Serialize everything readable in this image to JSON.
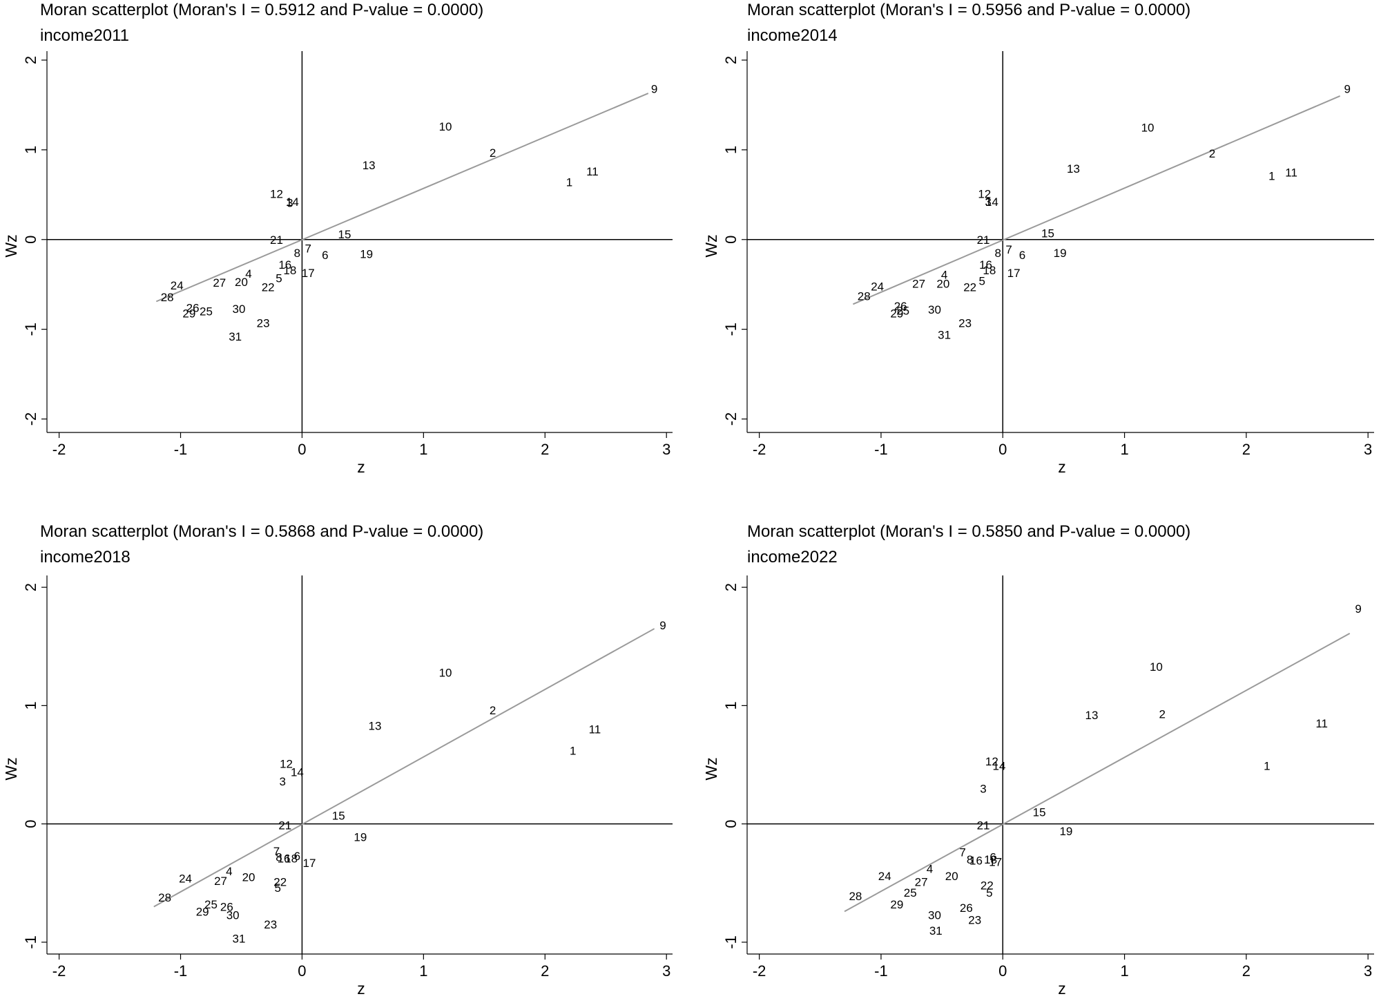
{
  "chart_data": [
    {
      "type": "scatter",
      "title": "Moran scatterplot (Moran's I = 0.5912 and P-value = 0.0000)",
      "subtitle": "income2011",
      "xlabel": "z",
      "ylabel": "Wz",
      "xlim": [
        -2.1,
        3.05
      ],
      "ylim": [
        -2.15,
        2.1
      ],
      "xticks": [
        "-2",
        "-1",
        "0",
        "1",
        "2",
        "3"
      ],
      "yticks": [
        "-2",
        "-1",
        "0",
        "1",
        "2"
      ],
      "fit_line": {
        "x": [
          -1.2,
          2.85
        ],
        "y": [
          -0.69,
          1.63
        ]
      },
      "points": [
        {
          "label": "9",
          "x": 2.9,
          "y": 1.68
        },
        {
          "label": "10",
          "x": 1.18,
          "y": 1.26
        },
        {
          "label": "2",
          "x": 1.57,
          "y": 0.97
        },
        {
          "label": "13",
          "x": 0.55,
          "y": 0.83
        },
        {
          "label": "11",
          "x": 2.39,
          "y": 0.76
        },
        {
          "label": "1",
          "x": 2.2,
          "y": 0.64
        },
        {
          "label": "12",
          "x": -0.21,
          "y": 0.51
        },
        {
          "label": "3",
          "x": -0.1,
          "y": 0.41
        },
        {
          "label": "14",
          "x": -0.08,
          "y": 0.42
        },
        {
          "label": "15",
          "x": 0.35,
          "y": 0.06
        },
        {
          "label": "21",
          "x": -0.21,
          "y": 0.0
        },
        {
          "label": "7",
          "x": 0.05,
          "y": -0.1
        },
        {
          "label": "8",
          "x": -0.04,
          "y": -0.15
        },
        {
          "label": "6",
          "x": 0.19,
          "y": -0.17
        },
        {
          "label": "19",
          "x": 0.53,
          "y": -0.16
        },
        {
          "label": "16",
          "x": -0.14,
          "y": -0.28
        },
        {
          "label": "18",
          "x": -0.1,
          "y": -0.34
        },
        {
          "label": "17",
          "x": 0.05,
          "y": -0.37
        },
        {
          "label": "5",
          "x": -0.19,
          "y": -0.43
        },
        {
          "label": "22",
          "x": -0.28,
          "y": -0.53
        },
        {
          "label": "4",
          "x": -0.44,
          "y": -0.38
        },
        {
          "label": "20",
          "x": -0.5,
          "y": -0.47
        },
        {
          "label": "27",
          "x": -0.68,
          "y": -0.48
        },
        {
          "label": "24",
          "x": -1.03,
          "y": -0.51
        },
        {
          "label": "28",
          "x": -1.11,
          "y": -0.64
        },
        {
          "label": "26",
          "x": -0.9,
          "y": -0.76
        },
        {
          "label": "29",
          "x": -0.93,
          "y": -0.82
        },
        {
          "label": "25",
          "x": -0.79,
          "y": -0.8
        },
        {
          "label": "30",
          "x": -0.52,
          "y": -0.77
        },
        {
          "label": "23",
          "x": -0.32,
          "y": -0.93
        },
        {
          "label": "31",
          "x": -0.55,
          "y": -1.08
        }
      ]
    },
    {
      "type": "scatter",
      "title": "Moran scatterplot (Moran's I = 0.5956 and P-value = 0.0000)",
      "subtitle": "income2014",
      "xlabel": "z",
      "ylabel": "Wz",
      "xlim": [
        -2.1,
        3.05
      ],
      "ylim": [
        -2.15,
        2.1
      ],
      "xticks": [
        "-2",
        "-1",
        "0",
        "1",
        "2",
        "3"
      ],
      "yticks": [
        "-2",
        "-1",
        "0",
        "1",
        "2"
      ],
      "fit_line": {
        "x": [
          -1.23,
          2.77
        ],
        "y": [
          -0.72,
          1.6
        ]
      },
      "points": [
        {
          "label": "9",
          "x": 2.83,
          "y": 1.68
        },
        {
          "label": "10",
          "x": 1.19,
          "y": 1.25
        },
        {
          "label": "2",
          "x": 1.72,
          "y": 0.96
        },
        {
          "label": "13",
          "x": 0.58,
          "y": 0.79
        },
        {
          "label": "11",
          "x": 2.37,
          "y": 0.75
        },
        {
          "label": "1",
          "x": 2.21,
          "y": 0.71
        },
        {
          "label": "12",
          "x": -0.15,
          "y": 0.51
        },
        {
          "label": "3",
          "x": -0.12,
          "y": 0.42
        },
        {
          "label": "14",
          "x": -0.09,
          "y": 0.42
        },
        {
          "label": "15",
          "x": 0.37,
          "y": 0.07
        },
        {
          "label": "21",
          "x": -0.16,
          "y": 0.0
        },
        {
          "label": "7",
          "x": 0.05,
          "y": -0.11
        },
        {
          "label": "8",
          "x": -0.04,
          "y": -0.15
        },
        {
          "label": "6",
          "x": 0.16,
          "y": -0.17
        },
        {
          "label": "19",
          "x": 0.47,
          "y": -0.15
        },
        {
          "label": "16",
          "x": -0.14,
          "y": -0.28
        },
        {
          "label": "18",
          "x": -0.11,
          "y": -0.34
        },
        {
          "label": "17",
          "x": 0.09,
          "y": -0.37
        },
        {
          "label": "5",
          "x": -0.17,
          "y": -0.46
        },
        {
          "label": "22",
          "x": -0.27,
          "y": -0.53
        },
        {
          "label": "4",
          "x": -0.48,
          "y": -0.39
        },
        {
          "label": "20",
          "x": -0.49,
          "y": -0.49
        },
        {
          "label": "27",
          "x": -0.69,
          "y": -0.49
        },
        {
          "label": "24",
          "x": -1.03,
          "y": -0.52
        },
        {
          "label": "28",
          "x": -1.14,
          "y": -0.63
        },
        {
          "label": "26",
          "x": -0.84,
          "y": -0.74
        },
        {
          "label": "29",
          "x": -0.87,
          "y": -0.82
        },
        {
          "label": "25",
          "x": -0.82,
          "y": -0.79
        },
        {
          "label": "30",
          "x": -0.56,
          "y": -0.78
        },
        {
          "label": "23",
          "x": -0.31,
          "y": -0.93
        },
        {
          "label": "31",
          "x": -0.48,
          "y": -1.06
        }
      ]
    },
    {
      "type": "scatter",
      "title": "Moran scatterplot (Moran's I = 0.5868 and P-value = 0.0000)",
      "subtitle": "income2018",
      "xlabel": "z",
      "ylabel": "Wz",
      "xlim": [
        -2.1,
        3.05
      ],
      "ylim": [
        -1.1,
        2.1
      ],
      "xticks": [
        "-2",
        "-1",
        "0",
        "1",
        "2",
        "3"
      ],
      "yticks": [
        "-1",
        "0",
        "1",
        "2"
      ],
      "fit_line": {
        "x": [
          -1.22,
          2.9
        ],
        "y": [
          -0.7,
          1.65
        ]
      },
      "points": [
        {
          "label": "9",
          "x": 2.97,
          "y": 1.68
        },
        {
          "label": "10",
          "x": 1.18,
          "y": 1.28
        },
        {
          "label": "2",
          "x": 1.57,
          "y": 0.96
        },
        {
          "label": "13",
          "x": 0.6,
          "y": 0.83
        },
        {
          "label": "11",
          "x": 2.41,
          "y": 0.8
        },
        {
          "label": "1",
          "x": 2.23,
          "y": 0.62
        },
        {
          "label": "12",
          "x": -0.13,
          "y": 0.51
        },
        {
          "label": "14",
          "x": -0.04,
          "y": 0.44
        },
        {
          "label": "3",
          "x": -0.16,
          "y": 0.36
        },
        {
          "label": "15",
          "x": 0.3,
          "y": 0.07
        },
        {
          "label": "21",
          "x": -0.14,
          "y": -0.01
        },
        {
          "label": "19",
          "x": 0.48,
          "y": -0.11
        },
        {
          "label": "7",
          "x": -0.21,
          "y": -0.23
        },
        {
          "label": "8",
          "x": -0.19,
          "y": -0.28
        },
        {
          "label": "16",
          "x": -0.15,
          "y": -0.29
        },
        {
          "label": "18",
          "x": -0.09,
          "y": -0.29
        },
        {
          "label": "6",
          "x": -0.04,
          "y": -0.27
        },
        {
          "label": "17",
          "x": 0.06,
          "y": -0.33
        },
        {
          "label": "22",
          "x": -0.18,
          "y": -0.49
        },
        {
          "label": "5",
          "x": -0.2,
          "y": -0.54
        },
        {
          "label": "4",
          "x": -0.6,
          "y": -0.4
        },
        {
          "label": "20",
          "x": -0.44,
          "y": -0.45
        },
        {
          "label": "27",
          "x": -0.67,
          "y": -0.48
        },
        {
          "label": "24",
          "x": -0.96,
          "y": -0.46
        },
        {
          "label": "28",
          "x": -1.13,
          "y": -0.62
        },
        {
          "label": "25",
          "x": -0.75,
          "y": -0.68
        },
        {
          "label": "26",
          "x": -0.62,
          "y": -0.7
        },
        {
          "label": "29",
          "x": -0.82,
          "y": -0.74
        },
        {
          "label": "30",
          "x": -0.57,
          "y": -0.77
        },
        {
          "label": "23",
          "x": -0.26,
          "y": -0.85
        },
        {
          "label": "31",
          "x": -0.52,
          "y": -0.97
        }
      ]
    },
    {
      "type": "scatter",
      "title": "Moran scatterplot (Moran's I = 0.5850 and P-value = 0.0000)",
      "subtitle": "income2022",
      "xlabel": "z",
      "ylabel": "Wz",
      "xlim": [
        -2.1,
        3.05
      ],
      "ylim": [
        -1.1,
        2.1
      ],
      "xticks": [
        "-2",
        "-1",
        "0",
        "1",
        "2",
        "3"
      ],
      "yticks": [
        "-1",
        "0",
        "1",
        "2"
      ],
      "fit_line": {
        "x": [
          -1.3,
          2.85
        ],
        "y": [
          -0.74,
          1.61
        ]
      },
      "points": [
        {
          "label": "9",
          "x": 2.92,
          "y": 1.82
        },
        {
          "label": "10",
          "x": 1.26,
          "y": 1.33
        },
        {
          "label": "13",
          "x": 0.73,
          "y": 0.92
        },
        {
          "label": "2",
          "x": 1.31,
          "y": 0.93
        },
        {
          "label": "11",
          "x": 2.62,
          "y": 0.85
        },
        {
          "label": "1",
          "x": 2.17,
          "y": 0.49
        },
        {
          "label": "12",
          "x": -0.09,
          "y": 0.53
        },
        {
          "label": "14",
          "x": -0.03,
          "y": 0.49
        },
        {
          "label": "3",
          "x": -0.16,
          "y": 0.3
        },
        {
          "label": "15",
          "x": 0.3,
          "y": 0.1
        },
        {
          "label": "21",
          "x": -0.16,
          "y": -0.01
        },
        {
          "label": "19",
          "x": 0.52,
          "y": -0.06
        },
        {
          "label": "7",
          "x": -0.33,
          "y": -0.24
        },
        {
          "label": "8",
          "x": -0.27,
          "y": -0.3
        },
        {
          "label": "16",
          "x": -0.22,
          "y": -0.31
        },
        {
          "label": "6",
          "x": -0.08,
          "y": -0.28
        },
        {
          "label": "18",
          "x": -0.1,
          "y": -0.3
        },
        {
          "label": "17",
          "x": -0.06,
          "y": -0.32
        },
        {
          "label": "22",
          "x": -0.13,
          "y": -0.52
        },
        {
          "label": "5",
          "x": -0.11,
          "y": -0.58
        },
        {
          "label": "4",
          "x": -0.6,
          "y": -0.38
        },
        {
          "label": "20",
          "x": -0.42,
          "y": -0.44
        },
        {
          "label": "27",
          "x": -0.67,
          "y": -0.49
        },
        {
          "label": "24",
          "x": -0.97,
          "y": -0.44
        },
        {
          "label": "25",
          "x": -0.76,
          "y": -0.58
        },
        {
          "label": "28",
          "x": -1.21,
          "y": -0.61
        },
        {
          "label": "29",
          "x": -0.87,
          "y": -0.68
        },
        {
          "label": "26",
          "x": -0.3,
          "y": -0.71
        },
        {
          "label": "30",
          "x": -0.56,
          "y": -0.77
        },
        {
          "label": "23",
          "x": -0.23,
          "y": -0.81
        },
        {
          "label": "31",
          "x": -0.55,
          "y": -0.9
        }
      ]
    }
  ]
}
